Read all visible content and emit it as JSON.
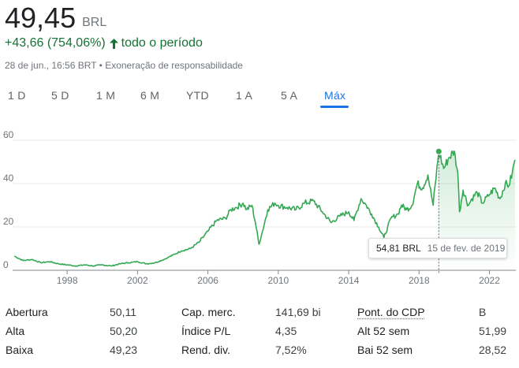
{
  "quote": {
    "price": "49,45",
    "currency": "BRL",
    "change": "+43,66 (754,06%)",
    "change_suffix": "todo o período",
    "timestamp": "28 de jun., 16:56 BRT",
    "separator": " • ",
    "disclaimer": "Exoneração de responsabilidade",
    "up_color": "#137333"
  },
  "tabs": [
    {
      "label": "1 D"
    },
    {
      "label": "5 D"
    },
    {
      "label": "1 M"
    },
    {
      "label": "6 M"
    },
    {
      "label": "YTD"
    },
    {
      "label": "1 A"
    },
    {
      "label": "5 A"
    },
    {
      "label": "Máx",
      "active": true
    }
  ],
  "chart_data": {
    "type": "area",
    "title": "",
    "xlabel": "",
    "ylabel": "",
    "x_ticks": [
      "1998",
      "2002",
      "2006",
      "2010",
      "2014",
      "2018",
      "2022"
    ],
    "y_ticks": [
      "0",
      "20",
      "40",
      "60"
    ],
    "xlim": [
      1994.9,
      2023.5
    ],
    "ylim": [
      0,
      60
    ],
    "grid": true,
    "line_color": "#34a853",
    "series": [
      {
        "x": [
          1995.0,
          1995.5,
          1996.0,
          1996.5,
          1997.0,
          1997.5,
          1998.0,
          1998.5,
          1999.0,
          1999.5,
          2000.0,
          2000.5,
          2001.0,
          2001.5,
          2002.0,
          2002.5,
          2003.0,
          2003.5,
          2004.0,
          2004.5,
          2005.0,
          2005.5,
          2006.0,
          2006.5,
          2007.0,
          2007.3,
          2007.6,
          2008.0,
          2008.2,
          2008.5,
          2008.7,
          2008.9,
          2009.1,
          2009.4,
          2009.8,
          2010.0,
          2010.5,
          2011.0,
          2011.5,
          2012.0,
          2012.5,
          2013.0,
          2013.5,
          2014.0,
          2014.3,
          2014.7,
          2015.0,
          2015.3,
          2015.7,
          2016.0,
          2016.4,
          2016.8,
          2017.0,
          2017.3,
          2017.6,
          2017.9,
          2018.2,
          2018.5,
          2018.8,
          2019.12,
          2019.4,
          2019.7,
          2020.0,
          2020.2,
          2020.3,
          2020.5,
          2020.8,
          2021.0,
          2021.3,
          2021.6,
          2022.0,
          2022.3,
          2022.6,
          2022.9,
          2023.1,
          2023.3,
          2023.45
        ],
        "y": [
          6.5,
          4.5,
          5.0,
          3.5,
          4.0,
          3.0,
          2.5,
          2.0,
          2.5,
          2.0,
          2.5,
          2.0,
          3.0,
          3.5,
          4.0,
          3.0,
          3.5,
          5.0,
          7.0,
          9.0,
          10.0,
          13.0,
          18.0,
          23.0,
          24.0,
          28.0,
          29.0,
          31.0,
          28.0,
          30.0,
          22.0,
          12.0,
          18.0,
          28.0,
          31.0,
          30.0,
          29.0,
          28.0,
          31.0,
          32.0,
          27.0,
          22.0,
          25.0,
          27.0,
          23.0,
          33.0,
          30.0,
          26.0,
          20.0,
          15.0,
          24.0,
          26.0,
          30.0,
          28.0,
          30.0,
          40.0,
          38.0,
          44.0,
          30.0,
          54.81,
          47.0,
          52.0,
          55.0,
          45.0,
          27.0,
          37.0,
          30.0,
          33.0,
          36.0,
          31.0,
          35.0,
          38.0,
          33.0,
          40.0,
          39.0,
          45.0,
          51.0
        ]
      }
    ],
    "highlight": {
      "value": "54,81 BRL",
      "date": "15 de fev. de 2019",
      "x": 2019.12,
      "y": 54.81
    }
  },
  "stats": [
    {
      "label": "Abertura",
      "value": "50,11"
    },
    {
      "label": "Alta",
      "value": "50,20"
    },
    {
      "label": "Baixa",
      "value": "49,23"
    },
    {
      "label": "Cap. merc.",
      "value": "141,69 bi"
    },
    {
      "label": "Índice P/L",
      "value": "4,35"
    },
    {
      "label": "Rend. div.",
      "value": "7,52%"
    },
    {
      "label": "Pont. do CDP",
      "value": "B"
    },
    {
      "label": "Alt 52 sem",
      "value": "51,99"
    },
    {
      "label": "Bai 52 sem",
      "value": "28,52"
    }
  ]
}
